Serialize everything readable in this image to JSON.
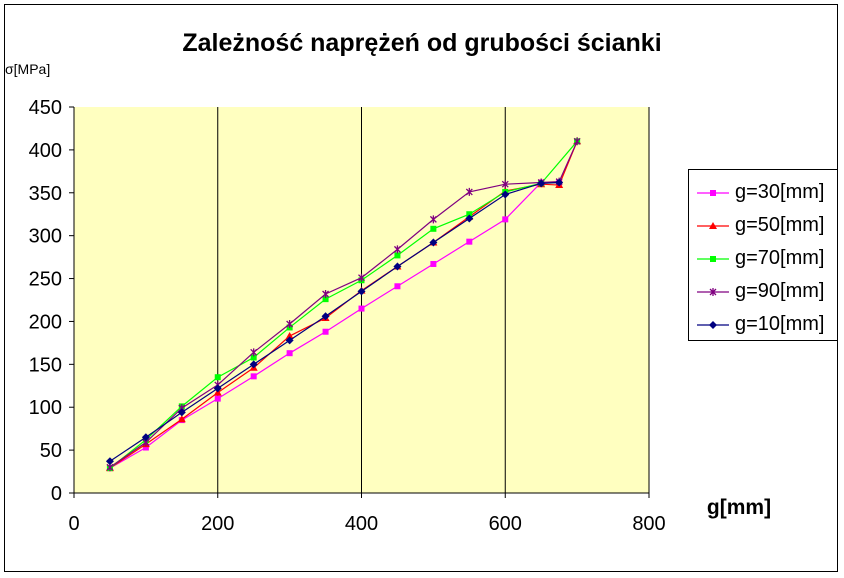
{
  "chart_data": {
    "type": "line",
    "title": "Zależność naprężeń od grubości ścianki",
    "ylabel": "σ[MPa]",
    "xlabel": "g[mm]",
    "xlim": [
      0,
      800
    ],
    "ylim": [
      0,
      450
    ],
    "xticks": [
      0,
      200,
      400,
      600,
      800
    ],
    "yticks": [
      0,
      50,
      100,
      150,
      200,
      250,
      300,
      350,
      400,
      450
    ],
    "grid": "vertical",
    "plot_background": "#ffffc0",
    "legend_position": "right",
    "series": [
      {
        "name": "g=30[mm]",
        "color": "#ff00ff",
        "marker": "square",
        "x": [
          50,
          100,
          150,
          200,
          250,
          300,
          350,
          400,
          450,
          500,
          550,
          600,
          650,
          675
        ],
        "y": [
          29,
          53,
          85,
          110,
          136,
          163,
          188,
          215,
          241,
          267,
          293,
          319,
          362,
          362
        ]
      },
      {
        "name": "g=50[mm]",
        "color": "#ff0000",
        "marker": "triangle",
        "x": [
          50,
          100,
          150,
          200,
          250,
          300,
          350,
          400,
          450,
          500,
          550,
          600,
          650,
          675,
          700
        ],
        "y": [
          29,
          57,
          86,
          117,
          146,
          183,
          204,
          236,
          264,
          292,
          322,
          352,
          360,
          359,
          410
        ]
      },
      {
        "name": "g=70[mm]",
        "color": "#00ff00",
        "marker": "square",
        "x": [
          50,
          100,
          150,
          200,
          250,
          300,
          350,
          400,
          450,
          500,
          550,
          600,
          650,
          700
        ],
        "y": [
          29,
          62,
          101,
          135,
          158,
          193,
          226,
          248,
          277,
          308,
          325,
          351,
          361,
          410
        ]
      },
      {
        "name": "g=90[mm]",
        "color": "#800080",
        "marker": "x",
        "x": [
          50,
          100,
          150,
          200,
          250,
          300,
          350,
          400,
          450,
          500,
          550,
          600,
          650,
          675,
          700
        ],
        "y": [
          30,
          59,
          99,
          126,
          164,
          197,
          232,
          251,
          284,
          319,
          351,
          360,
          362,
          363,
          410
        ]
      },
      {
        "name": "g=10[mm]",
        "color": "#000080",
        "marker": "diamond",
        "x": [
          50,
          100,
          150,
          200,
          250,
          300,
          350,
          400,
          450,
          500,
          550,
          600,
          650,
          675
        ],
        "y": [
          37,
          65,
          94,
          122,
          150,
          178,
          206,
          235,
          264,
          292,
          320,
          348,
          361,
          362
        ]
      }
    ]
  }
}
